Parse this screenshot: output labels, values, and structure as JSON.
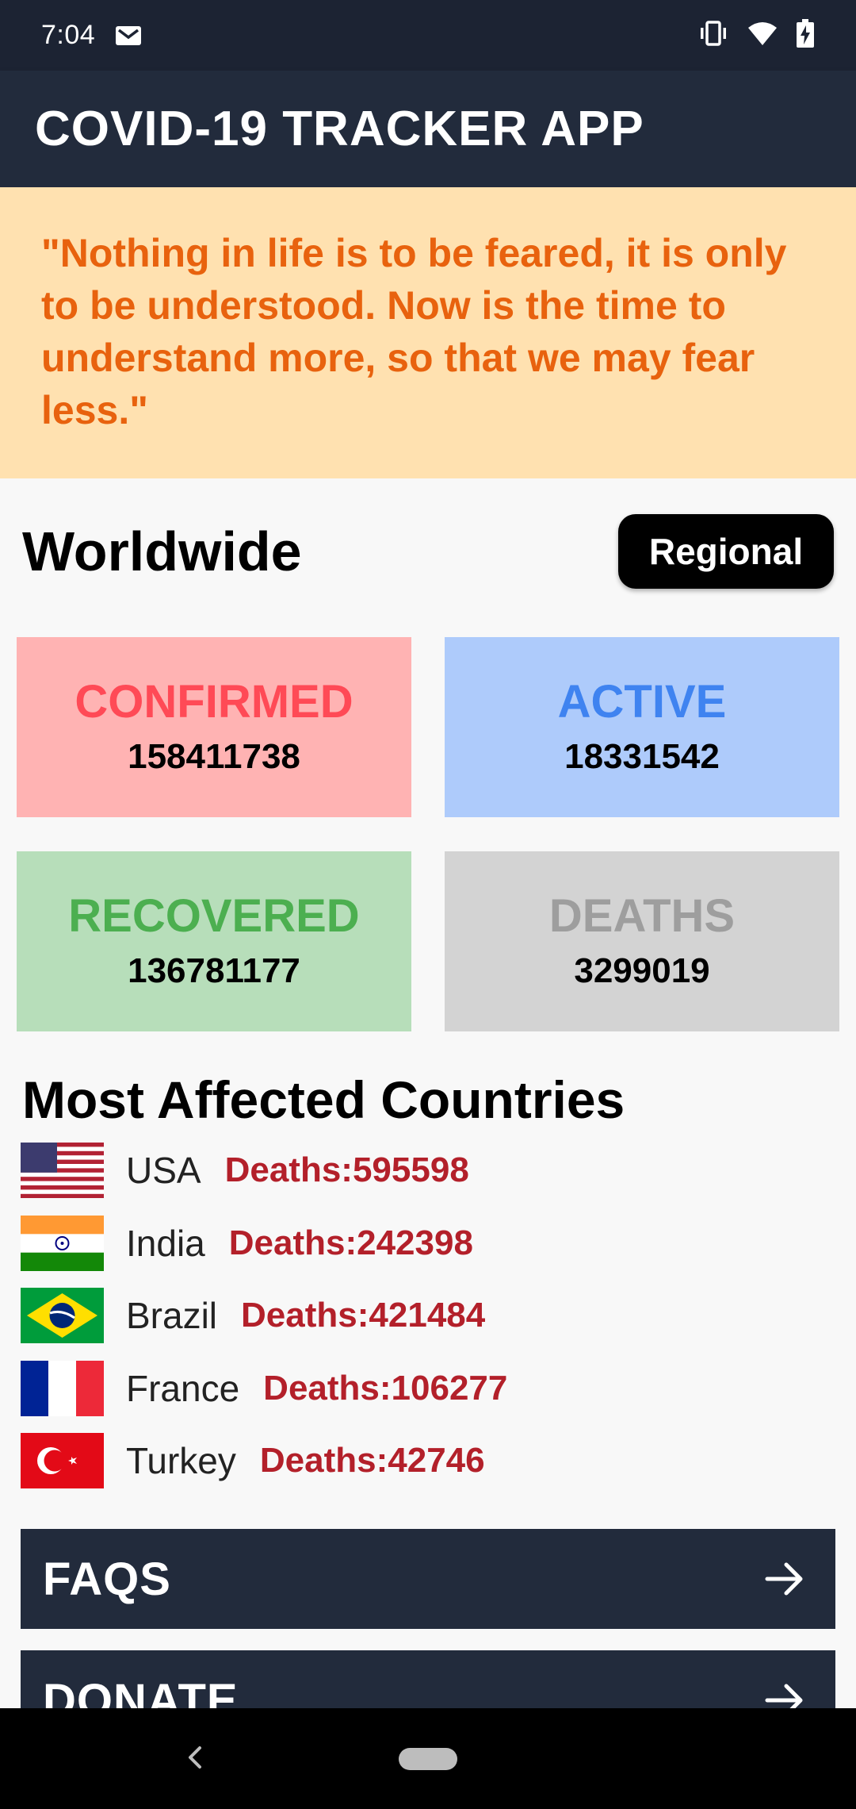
{
  "status_bar": {
    "time": "7:04",
    "icons": [
      "mail-icon",
      "vibrate-icon",
      "wifi-icon",
      "battery-charging-icon"
    ]
  },
  "app_bar": {
    "title": "COVID-19 TRACKER APP",
    "color": "#222b3c"
  },
  "quote": {
    "text": "\"Nothing in life is to be feared, it is only to be understood. Now is the time to understand more, so that we may fear less.\"",
    "background": "#ffe1b0",
    "color": "#e8620e"
  },
  "worldwide": {
    "title": "Worldwide",
    "regional_label": "Regional",
    "stats": {
      "confirmed": {
        "label": "CONFIRMED",
        "value": "158411738",
        "color": "#ff4a56"
      },
      "active": {
        "label": "ACTIVE",
        "value": "18331542",
        "color": "#3f83f0"
      },
      "recovered": {
        "label": "RECOVERED",
        "value": "136781177",
        "color": "#4caf50"
      },
      "deaths": {
        "label": "DEATHS",
        "value": "3299019",
        "color": "#9e9e9e"
      }
    }
  },
  "countries": {
    "title": "Most Affected Countries",
    "items": [
      {
        "name": "USA",
        "deaths": "Deaths:595598",
        "flag": "usa-flag-icon"
      },
      {
        "name": "India",
        "deaths": "Deaths:242398",
        "flag": "india-flag-icon"
      },
      {
        "name": "Brazil",
        "deaths": "Deaths:421484",
        "flag": "brazil-flag-icon"
      },
      {
        "name": "France",
        "deaths": "Deaths:106277",
        "flag": "france-flag-icon"
      },
      {
        "name": "Turkey",
        "deaths": "Deaths:42746",
        "flag": "turkey-flag-icon"
      }
    ]
  },
  "nav": {
    "faqs_label": "FAQS",
    "donate_label": "DONATE"
  }
}
